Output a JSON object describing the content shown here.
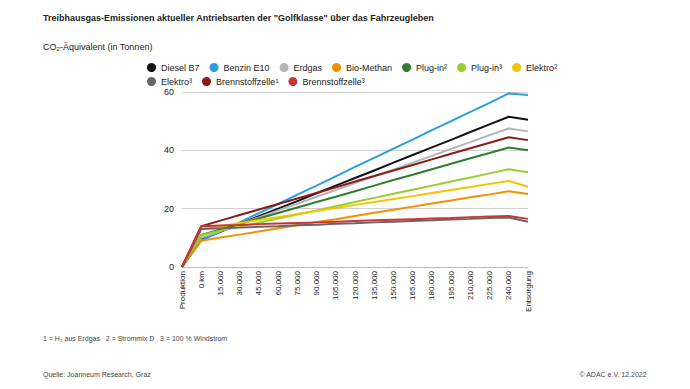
{
  "chart_data": {
    "type": "line",
    "title": "Treibhausgas-Emissionen aktueller Antriebsarten der \"Golfklasse\" über das Fahrzeugleben",
    "y_label": "CO₂-Äquivalent (in Tonnen)",
    "annotations": [
      "1 = H₂ aus Erdgas   2 = Strommix D   3 = 100 % Windstrom",
      "Quelle: Joanneum Research, Graz",
      "© ADAC e.V. 12.2022"
    ],
    "categories": [
      "Produktion",
      "0 km",
      "15.000",
      "30.000",
      "45.000",
      "60.000",
      "75.000",
      "90.000",
      "105.000",
      "120.000",
      "135.000",
      "150.000",
      "165.000",
      "180.000",
      "195.000",
      "210.000",
      "225.000",
      "240.000",
      "Entsorgung"
    ],
    "ylim": [
      0,
      60
    ],
    "yticks": [
      0,
      20,
      40,
      60
    ],
    "grid": true,
    "legend": "top",
    "series": [
      {
        "name": "Diesel B7",
        "color": "#111111",
        "values": [
          0,
          9.5,
          12.1,
          14.8,
          17.4,
          20,
          22.6,
          25.3,
          27.9,
          30.5,
          33.1,
          35.8,
          38.4,
          41,
          43.6,
          46.3,
          48.9,
          51.5,
          50.5
        ]
      },
      {
        "name": "Benzin E10",
        "color": "#2a9fd8",
        "values": [
          0,
          9,
          12.2,
          15.3,
          18.5,
          21.6,
          24.8,
          27.9,
          31.1,
          34.3,
          37.4,
          40.6,
          43.7,
          46.9,
          50,
          53.2,
          56.3,
          59.5,
          59
        ]
      },
      {
        "name": "Erdgas",
        "color": "#b4b4b4",
        "values": [
          0,
          10,
          12.3,
          14.7,
          17,
          19.4,
          21.7,
          24.1,
          26.4,
          28.8,
          31.1,
          33.4,
          35.8,
          38.1,
          40.5,
          42.8,
          45.2,
          47.5,
          46.5
        ]
      },
      {
        "name": "Bio-Methan",
        "color": "#f29100",
        "values": [
          0,
          9,
          10.1,
          11.1,
          12.2,
          13.3,
          14.3,
          15.4,
          16.4,
          17.5,
          18.6,
          19.6,
          20.7,
          21.8,
          22.8,
          23.9,
          24.9,
          26,
          25
        ]
      },
      {
        "name": "Plug-in²",
        "color": "#2e7d32",
        "values": [
          0,
          11,
          12.9,
          14.8,
          16.6,
          18.5,
          20.4,
          22.3,
          24.1,
          26,
          27.9,
          29.8,
          31.6,
          33.5,
          35.4,
          37.3,
          39.1,
          41,
          40
        ]
      },
      {
        "name": "Plug-in³",
        "color": "#9acd32",
        "values": [
          0,
          11,
          12.4,
          13.8,
          15.2,
          16.6,
          18,
          19.4,
          20.8,
          22.3,
          23.7,
          25.1,
          26.5,
          27.9,
          29.3,
          30.7,
          32.1,
          33.5,
          32.5
        ]
      },
      {
        "name": "Elektro²",
        "color": "#f5c400",
        "values": [
          0,
          13,
          14,
          15.1,
          16.1,
          17.1,
          18.2,
          19.2,
          20.2,
          21.3,
          22.3,
          23.3,
          24.3,
          25.4,
          26.4,
          27.4,
          28.5,
          29.5,
          27.5
        ]
      },
      {
        "name": "Elektro³",
        "color": "#666666",
        "values": [
          0,
          13,
          13.3,
          13.5,
          13.8,
          14,
          14.3,
          14.5,
          14.8,
          15,
          15.3,
          15.5,
          15.8,
          16,
          16.3,
          16.5,
          16.8,
          17,
          15.5
        ]
      },
      {
        "name": "Brennstoffzelle¹",
        "color": "#8b1a1a",
        "values": [
          0,
          14,
          15.9,
          17.8,
          19.7,
          21.6,
          23.5,
          25.4,
          27.3,
          29.3,
          31.2,
          33.1,
          35,
          36.9,
          38.8,
          40.7,
          42.6,
          44.5,
          43.5
        ]
      },
      {
        "name": "Brennstoffzelle³",
        "color": "#c8363a",
        "values": [
          0,
          14,
          14.2,
          14.4,
          14.7,
          14.9,
          15.1,
          15.3,
          15.5,
          15.8,
          16,
          16.2,
          16.4,
          16.6,
          16.8,
          17.1,
          17.3,
          17.5,
          16.5
        ]
      }
    ]
  }
}
